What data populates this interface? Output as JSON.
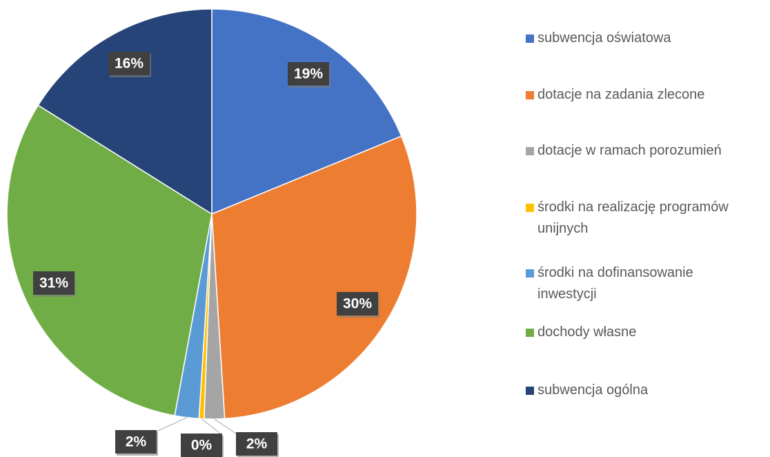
{
  "chart_data": {
    "type": "pie",
    "categories": [
      "subwencja oświatowa",
      "dotacje na zadania zlecone",
      "dotacje w ramach porozumień",
      "środki na realizację programów unijnych",
      "środki na dofinansowanie inwestycji",
      "dochody własne",
      "subwencja ogólna"
    ],
    "values": [
      18.8,
      30.2,
      1.6,
      0.4,
      1.9,
      31,
      16.1
    ],
    "value_labels": [
      "19%",
      "30%",
      "2%",
      "0%",
      "2%",
      "31%",
      "16%"
    ],
    "colors": [
      "#4472c4",
      "#ed7d31",
      "#a5a5a5",
      "#ffc000",
      "#5b9bd5",
      "#70ad47",
      "#264478"
    ],
    "legend": "right"
  }
}
